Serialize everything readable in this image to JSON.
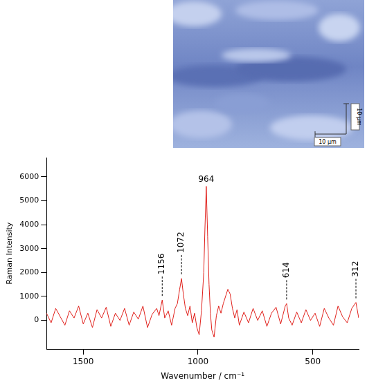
{
  "chart_data": {
    "type": "line",
    "x_label": "Wavenumber / cm⁻¹",
    "y_label": "Raman Intensity",
    "x": [
      1660,
      1640,
      1620,
      1600,
      1580,
      1560,
      1540,
      1520,
      1500,
      1480,
      1460,
      1440,
      1420,
      1400,
      1380,
      1360,
      1340,
      1320,
      1300,
      1280,
      1260,
      1240,
      1220,
      1200,
      1180,
      1170,
      1156,
      1145,
      1130,
      1115,
      1100,
      1090,
      1080,
      1072,
      1064,
      1055,
      1045,
      1035,
      1025,
      1015,
      1005,
      995,
      985,
      975,
      970,
      964,
      958,
      952,
      946,
      940,
      930,
      920,
      910,
      900,
      890,
      880,
      870,
      860,
      850,
      840,
      830,
      820,
      800,
      780,
      760,
      740,
      720,
      700,
      680,
      660,
      640,
      620,
      614,
      605,
      590,
      570,
      550,
      530,
      510,
      490,
      470,
      450,
      430,
      410,
      390,
      370,
      350,
      330,
      312,
      300
    ],
    "values": [
      300,
      -100,
      500,
      150,
      -200,
      400,
      100,
      600,
      -150,
      300,
      -300,
      450,
      100,
      550,
      -250,
      300,
      0,
      500,
      -200,
      350,
      50,
      600,
      -300,
      250,
      500,
      200,
      850,
      100,
      400,
      -200,
      500,
      700,
      1300,
      1750,
      1100,
      500,
      200,
      600,
      -100,
      300,
      -300,
      -600,
      400,
      2000,
      3800,
      5600,
      3500,
      1500,
      300,
      -400,
      -700,
      200,
      600,
      300,
      700,
      1000,
      1300,
      1100,
      500,
      100,
      450,
      -200,
      350,
      -100,
      500,
      0,
      400,
      -250,
      300,
      550,
      -150,
      600,
      700,
      100,
      -200,
      350,
      -100,
      450,
      0,
      300,
      -250,
      500,
      100,
      -200,
      600,
      150,
      -100,
      500,
      750,
      100
    ],
    "color": "#e0201b",
    "xlim": [
      1660,
      300
    ],
    "xticks": [
      1500,
      1000,
      500
    ],
    "ylim": [
      -1200,
      6800
    ],
    "yticks": [
      0,
      1000,
      2000,
      3000,
      4000,
      5000,
      6000
    ],
    "grid": false,
    "annotations": [
      {
        "x": 1156,
        "label": "1156"
      },
      {
        "x": 1072,
        "label": "1072"
      },
      {
        "x": 964,
        "label": "964"
      },
      {
        "x": 614,
        "label": "614"
      },
      {
        "x": 312,
        "label": "312"
      }
    ]
  },
  "inset": {
    "scale_bar_labels": [
      "10 µm",
      "10 µm"
    ]
  }
}
